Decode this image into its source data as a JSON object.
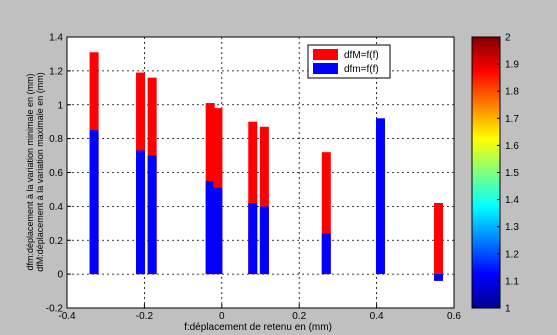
{
  "chart_data": {
    "type": "bar",
    "title": "",
    "xlabel": "f:déplacement de retenu en (mm)",
    "ylabel": "dfM:déplacement à la variation maximale en (mm)",
    "ylabel2": "dfm:déplacement à la variation minimale en (mm)",
    "xlim": [
      -0.4,
      0.6
    ],
    "ylim": [
      -0.2,
      1.4
    ],
    "xticks": [
      "-0.4",
      "-0.2",
      "0",
      "0.2",
      "0.4",
      "0.6"
    ],
    "yticks": [
      "-0.2",
      "0",
      "0.2",
      "0.4",
      "0.6",
      "0.8",
      "1",
      "1.2",
      "1.4"
    ],
    "grid": true,
    "legend_position": "top-right",
    "x": [
      -0.33,
      -0.21,
      -0.18,
      -0.03,
      -0.01,
      0.08,
      0.11,
      0.27,
      0.41,
      0.56
    ],
    "series": [
      {
        "name": "dfM=f(f)",
        "color": "#ff0000",
        "values": [
          1.31,
          1.19,
          1.16,
          1.01,
          0.98,
          0.9,
          0.87,
          0.72,
          0.0,
          0.42
        ]
      },
      {
        "name": "dfm=f(f)",
        "color": "#0000ff",
        "values": [
          0.85,
          0.73,
          0.7,
          0.55,
          0.51,
          0.42,
          0.4,
          0.24,
          0.92,
          -0.04
        ]
      }
    ],
    "colorbar": {
      "range": [
        1,
        2
      ],
      "ticks": [
        "1",
        "1.1",
        "1.2",
        "1.3",
        "1.4",
        "1.5",
        "1.6",
        "1.7",
        "1.8",
        "1.9",
        "2"
      ],
      "colormap": "jet"
    }
  }
}
